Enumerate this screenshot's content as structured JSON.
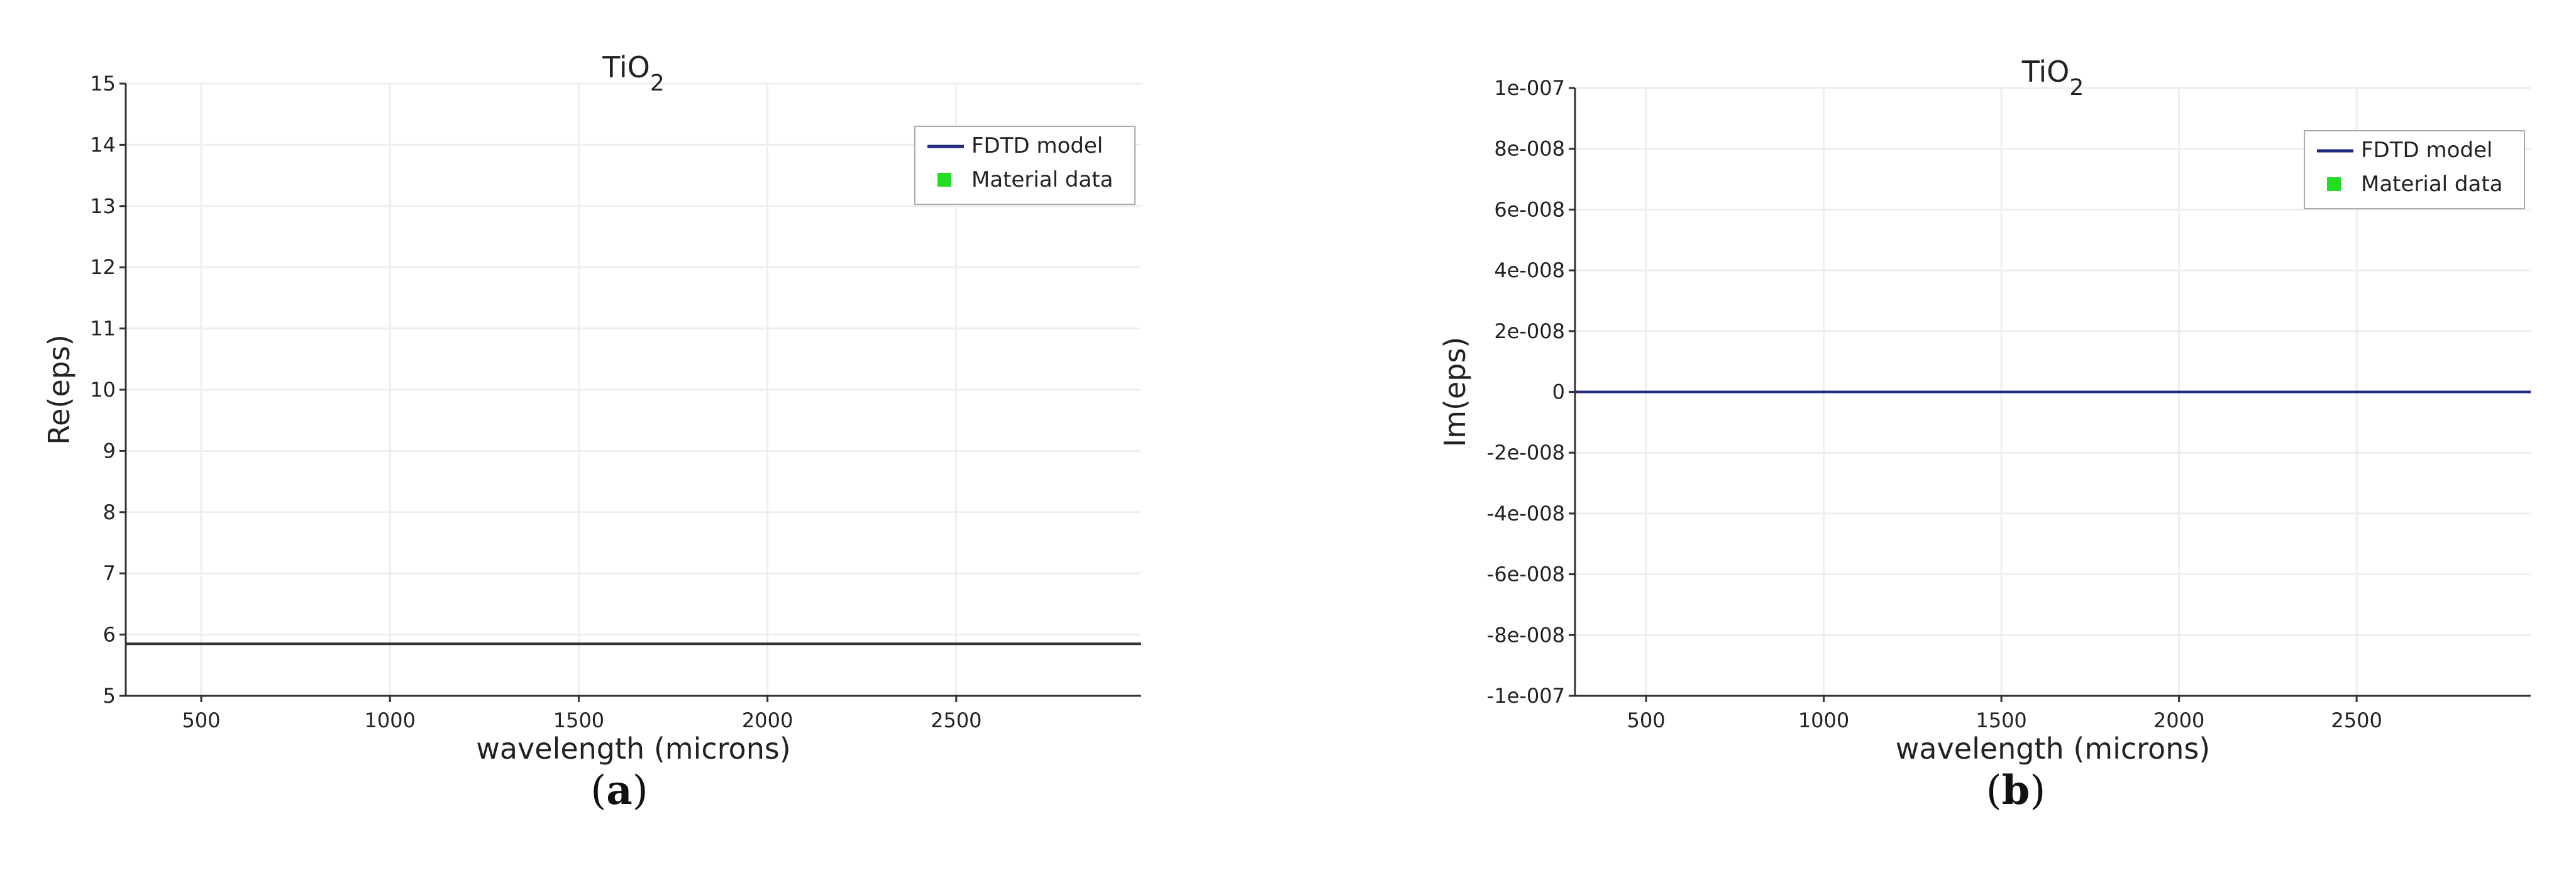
{
  "chart_data": [
    {
      "type": "line",
      "panel_label": "a",
      "title": "TiO",
      "title_subscript": "2",
      "xlabel": "wavelength (microns)",
      "ylabel": "Re(eps)",
      "xlim": [
        300,
        2990
      ],
      "ylim": [
        5,
        15
      ],
      "x_ticks": [
        500,
        1000,
        1500,
        2000,
        2500
      ],
      "x_tick_labels": [
        "500",
        "1000",
        "1500",
        "2000",
        "2500"
      ],
      "y_ticks": [
        5,
        6,
        7,
        8,
        9,
        10,
        11,
        12,
        13,
        14,
        15
      ],
      "y_tick_labels": [
        "5",
        "6",
        "7",
        "8",
        "9",
        "10",
        "11",
        "12",
        "13",
        "14",
        "15"
      ],
      "grid": true,
      "legend_position": "top-right",
      "series": [
        {
          "name": "FDTD model",
          "kind": "line",
          "color": "#1f2a80",
          "x": [
            300,
            2990
          ],
          "y": [
            5.85,
            5.85
          ]
        },
        {
          "name": "Material data",
          "kind": "marker",
          "color": "#22dd22",
          "x": [],
          "y": []
        }
      ]
    },
    {
      "type": "line",
      "panel_label": "b",
      "title": "TiO",
      "title_subscript": "2",
      "xlabel": "wavelength (microns)",
      "ylabel": "Im(eps)",
      "xlim": [
        300,
        2990
      ],
      "ylim": [
        -1e-07,
        1e-07
      ],
      "x_ticks": [
        500,
        1000,
        1500,
        2000,
        2500
      ],
      "x_tick_labels": [
        "500",
        "1000",
        "1500",
        "2000",
        "2500"
      ],
      "y_ticks": [
        1e-07,
        8e-08,
        6e-08,
        4e-08,
        2e-08,
        0,
        -2e-08,
        -4e-08,
        -6e-08,
        -8e-08,
        -1e-07
      ],
      "y_tick_labels": [
        "1e-007",
        "8e-008",
        "6e-008",
        "4e-008",
        "2e-008",
        "0",
        "-2e-008",
        "-4e-008",
        "-6e-008",
        "-8e-008",
        "-1e-007"
      ],
      "grid": true,
      "legend_position": "top-right",
      "series": [
        {
          "name": "FDTD model",
          "kind": "line",
          "color": "#1f2a80",
          "x": [
            300,
            2990
          ],
          "y": [
            0,
            0
          ]
        },
        {
          "name": "Material data",
          "kind": "marker",
          "color": "#22dd22",
          "x": [],
          "y": []
        }
      ]
    }
  ]
}
